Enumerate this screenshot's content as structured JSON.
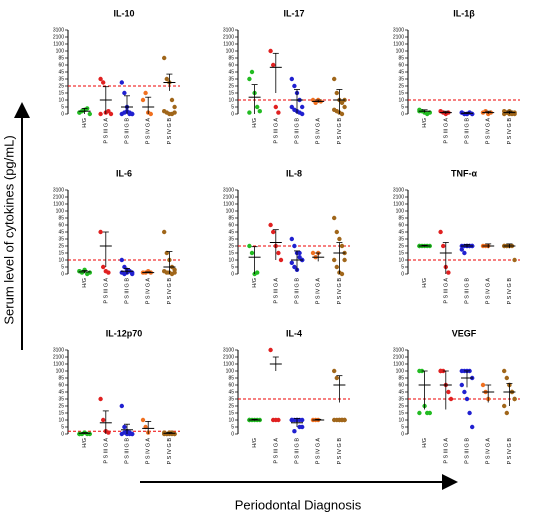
{
  "y_label": "Serum level of cytokines (pg/mL)",
  "x_label": "Periodontal Diagnosis",
  "chart_data": [
    {
      "type": "scatter",
      "title": "IL-10",
      "categories": [
        "H/G",
        "P S III G A",
        "P S III G B",
        "P S IV G A",
        "P S IV G B"
      ],
      "colors": [
        "#22bb22",
        "#e02020",
        "#2020d0",
        "#f07020",
        "#a0661a"
      ],
      "ylim": [
        0,
        3100
      ],
      "yticks": [
        0,
        5,
        10,
        15,
        25,
        35,
        45,
        60,
        85,
        100,
        1100,
        2100,
        3100
      ],
      "threshold": 25,
      "points": [
        [
          1,
          2,
          3,
          4,
          0,
          1
        ],
        [
          35,
          30,
          1,
          2,
          0,
          0
        ],
        [
          30,
          15,
          5,
          1,
          0,
          0,
          1,
          2,
          0,
          0
        ],
        [
          10,
          15,
          1,
          0
        ],
        [
          85,
          35,
          30,
          10,
          5,
          2,
          1,
          0,
          0,
          1
        ]
      ],
      "means": [
        2,
        10,
        5,
        5,
        30
      ],
      "errors": [
        2,
        14,
        8,
        7,
        12
      ]
    },
    {
      "type": "scatter",
      "title": "IL-17",
      "categories": [
        "H/G",
        "P S III G A",
        "P S III G B",
        "P S IV G A",
        "P S IV G B"
      ],
      "colors": [
        "#22bb22",
        "#e02020",
        "#2020d0",
        "#f07020",
        "#a0661a"
      ],
      "ylim": [
        0,
        3100
      ],
      "yticks": [
        0,
        5,
        10,
        15,
        25,
        35,
        45,
        60,
        85,
        100,
        1100,
        2100,
        3100
      ],
      "threshold": 10,
      "points": [
        [
          35,
          45,
          15,
          5,
          2,
          1
        ],
        [
          100,
          60,
          5,
          1
        ],
        [
          35,
          25,
          15,
          10,
          5,
          5,
          3,
          2,
          1,
          0
        ],
        [
          10,
          8,
          10,
          9
        ],
        [
          35,
          15,
          10,
          8,
          5,
          3,
          2,
          1,
          0,
          10
        ]
      ],
      "means": [
        12,
        55,
        10,
        9,
        10
      ],
      "errors": [
        15,
        40,
        10,
        1,
        10
      ]
    },
    {
      "type": "scatter",
      "title": "IL-1β",
      "categories": [
        "H/G",
        "P S III G A",
        "P S III G B",
        "P S IV G A",
        "P S IV G B"
      ],
      "colors": [
        "#22bb22",
        "#e02020",
        "#2020d0",
        "#f07020",
        "#a0661a"
      ],
      "ylim": [
        0,
        3100
      ],
      "yticks": [
        0,
        5,
        10,
        15,
        25,
        35,
        45,
        60,
        85,
        100,
        1100,
        2100,
        3100
      ],
      "threshold": 10,
      "points": [
        [
          3,
          2,
          1,
          0,
          1,
          2
        ],
        [
          2,
          1,
          0,
          1
        ],
        [
          1,
          0,
          0,
          1,
          0,
          1,
          0,
          0,
          1,
          0
        ],
        [
          1,
          2,
          0,
          1
        ],
        [
          2,
          1,
          0,
          1,
          0,
          0,
          1,
          2,
          0,
          1
        ]
      ],
      "means": [
        2,
        1,
        0.5,
        1,
        1
      ],
      "errors": [
        1,
        1,
        0.5,
        1,
        1
      ]
    },
    {
      "type": "scatter",
      "title": "IL-6",
      "categories": [
        "H/G",
        "P S III G A",
        "P S III G B",
        "P S IV G A",
        "P S IV G B"
      ],
      "colors": [
        "#22bb22",
        "#e02020",
        "#2020d0",
        "#f07020",
        "#a0661a"
      ],
      "ylim": [
        0,
        3100
      ],
      "yticks": [
        0,
        5,
        10,
        15,
        25,
        35,
        45,
        60,
        85,
        100,
        1100,
        2100,
        3100
      ],
      "threshold": 10,
      "points": [
        [
          2,
          1,
          3,
          0,
          1,
          2
        ],
        [
          45,
          5,
          2,
          1
        ],
        [
          10,
          5,
          3,
          2,
          1,
          1,
          0,
          1,
          2,
          0
        ],
        [
          1,
          1,
          2,
          1
        ],
        [
          45,
          15,
          10,
          5,
          3,
          2,
          1,
          1,
          0,
          1
        ]
      ],
      "means": [
        1.5,
        25,
        2,
        1,
        5
      ],
      "errors": [
        1,
        20,
        2,
        0.5,
        12
      ]
    },
    {
      "type": "scatter",
      "title": "IL-8",
      "categories": [
        "H/G",
        "P S III G A",
        "P S III G B",
        "P S IV G A",
        "P S IV G B"
      ],
      "colors": [
        "#22bb22",
        "#e02020",
        "#2020d0",
        "#f07020",
        "#a0661a"
      ],
      "ylim": [
        0,
        3100
      ],
      "yticks": [
        0,
        5,
        10,
        15,
        25,
        35,
        45,
        60,
        85,
        100,
        1100,
        2100,
        3100
      ],
      "threshold": 25,
      "points": [
        [
          25,
          15,
          0,
          1
        ],
        [
          60,
          45,
          25,
          15,
          10
        ],
        [
          35,
          25,
          15,
          12,
          10,
          8,
          5,
          3,
          15,
          10
        ],
        [
          15,
          12,
          15
        ],
        [
          85,
          45,
          35,
          25,
          15,
          10,
          5,
          1,
          0,
          10
        ]
      ],
      "means": [
        12,
        30,
        10,
        12,
        15
      ],
      "errors": [
        12,
        20,
        8,
        3,
        15
      ]
    },
    {
      "type": "scatter",
      "title": "TNF-α",
      "categories": [
        "H/G",
        "P S III G A",
        "P S III G B",
        "P S IV G A",
        "P S IV G B"
      ],
      "colors": [
        "#22bb22",
        "#e02020",
        "#2020d0",
        "#f07020",
        "#a0661a"
      ],
      "ylim": [
        0,
        3100
      ],
      "yticks": [
        0,
        5,
        10,
        15,
        25,
        35,
        45,
        60,
        85,
        100,
        1100,
        2100,
        3100
      ],
      "threshold": 10,
      "points": [
        [
          25,
          25,
          25,
          25,
          25,
          25
        ],
        [
          45,
          25,
          5,
          1
        ],
        [
          25,
          25,
          25,
          25,
          25,
          20,
          15,
          25,
          25,
          25
        ],
        [
          25,
          25,
          25
        ],
        [
          25,
          25,
          25,
          25,
          10,
          25,
          25
        ]
      ],
      "means": [
        25,
        15,
        25,
        25,
        25
      ],
      "errors": [
        1,
        15,
        2,
        3,
        3
      ]
    },
    {
      "type": "scatter",
      "title": "IL-12p70",
      "categories": [
        "H/G",
        "P S III G A",
        "P S III G B",
        "P S IV G A",
        "P S IV G B"
      ],
      "colors": [
        "#22bb22",
        "#e02020",
        "#2020d0",
        "#f07020",
        "#a0661a"
      ],
      "ylim": [
        0,
        3100
      ],
      "yticks": [
        0,
        5,
        10,
        15,
        25,
        35,
        45,
        60,
        85,
        100,
        1100,
        2100,
        3100
      ],
      "threshold": 2,
      "points": [
        [
          0,
          0,
          1,
          0,
          0,
          0
        ],
        [
          35,
          10,
          2,
          1
        ],
        [
          25,
          5,
          2,
          1,
          0,
          0,
          1,
          0,
          0,
          0
        ],
        [
          10,
          5,
          1
        ],
        [
          1,
          0,
          0,
          1,
          0,
          0,
          0,
          1,
          0,
          0
        ]
      ],
      "means": [
        0.5,
        8,
        3,
        4,
        0.5
      ],
      "errors": [
        0.5,
        10,
        4,
        5,
        0.5
      ]
    },
    {
      "type": "scatter",
      "title": "IL-4",
      "categories": [
        "H/G",
        "P S III G A",
        "P S III G B",
        "P S IV G A",
        "P S IV G B"
      ],
      "colors": [
        "#22bb22",
        "#e02020",
        "#2020d0",
        "#f07020",
        "#a0661a"
      ],
      "ylim": [
        0,
        3100
      ],
      "yticks": [
        0,
        5,
        10,
        15,
        25,
        35,
        45,
        60,
        85,
        100,
        1100,
        2100,
        3100
      ],
      "threshold": 35,
      "points": [
        [
          10,
          10,
          10,
          10,
          10,
          10
        ],
        [
          3100,
          10,
          10,
          10
        ],
        [
          10,
          10,
          10,
          5,
          5,
          10,
          2,
          10,
          10,
          10
        ],
        [
          10,
          10,
          10
        ],
        [
          100,
          85,
          10,
          10,
          10,
          10,
          10,
          10,
          10,
          10
        ]
      ],
      "means": [
        10,
        1100,
        8,
        10,
        60
      ],
      "errors": [
        0.5,
        1000,
        3,
        0.5,
        30
      ]
    },
    {
      "type": "scatter",
      "title": "VEGF",
      "categories": [
        "H/G",
        "P S III G A",
        "P S III G B",
        "P S IV G A",
        "P S IV G B"
      ],
      "colors": [
        "#22bb22",
        "#e02020",
        "#2020d0",
        "#f07020",
        "#a0661a"
      ],
      "ylim": [
        0,
        3100
      ],
      "yticks": [
        0,
        5,
        10,
        15,
        25,
        35,
        45,
        60,
        85,
        100,
        1100,
        2100,
        3100
      ],
      "threshold": 35,
      "points": [
        [
          100,
          100,
          25,
          15,
          15,
          15
        ],
        [
          100,
          100,
          60,
          45,
          35,
          100
        ],
        [
          100,
          100,
          100,
          100,
          85,
          60,
          45,
          35,
          15,
          5
        ],
        [
          60,
          45,
          35
        ],
        [
          100,
          85,
          60,
          45,
          35,
          25,
          15,
          60,
          45,
          35
        ]
      ],
      "means": [
        60,
        60,
        85,
        45,
        45
      ],
      "errors": [
        40,
        40,
        30,
        15,
        20
      ]
    }
  ]
}
